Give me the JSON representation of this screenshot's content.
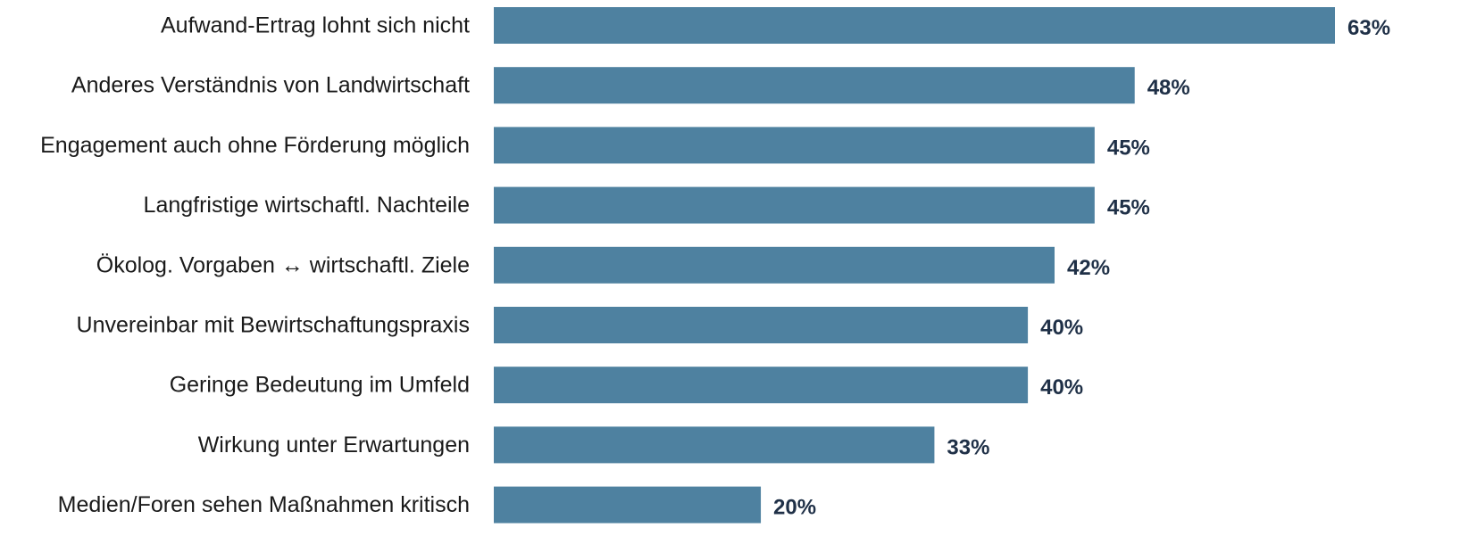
{
  "chart_data": {
    "type": "bar",
    "orientation": "horizontal",
    "categories": [
      "Aufwand-Ertrag lohnt sich nicht",
      "Anderes Verständnis von Landwirtschaft",
      "Engagement auch ohne Förderung möglich",
      "Langfristige wirtschaftl. Nachteile",
      "Ökolog. Vorgaben ↔ wirtschaftl. Ziele",
      "Unvereinbar mit Bewirtschaftungspraxis",
      "Geringe Bedeutung im Umfeld",
      "Wirkung unter Erwartungen",
      "Medien/Foren sehen Maßnahmen kritisch"
    ],
    "values": [
      63,
      48,
      45,
      45,
      42,
      40,
      40,
      33,
      20
    ],
    "value_labels": [
      "63%",
      "48%",
      "45%",
      "45%",
      "42%",
      "40%",
      "40%",
      "33%",
      "20%"
    ],
    "title": "",
    "xlabel": "",
    "ylabel": "",
    "xlim": [
      0,
      63
    ],
    "grid": false,
    "legend": "none",
    "colors": {
      "bar": "#4e81a0",
      "value_label": "#1f3047",
      "category_label": "#1a1a1a"
    }
  }
}
